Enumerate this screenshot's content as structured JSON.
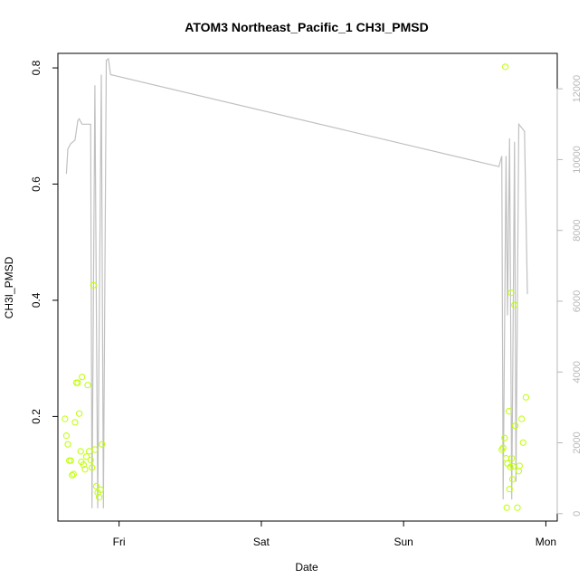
{
  "chart_data": {
    "type": "scatter",
    "title": "ATOM3 Northeast_Pacific_1 CH3I_PMSD",
    "xlabel": "Date",
    "ylabel": "CH3I_PMSD",
    "x_axis": {
      "unit": "days",
      "range": [
        -0.43,
        3.08
      ],
      "ticks": [
        {
          "value": 0,
          "label": "Fri"
        },
        {
          "value": 1,
          "label": "Sat"
        },
        {
          "value": 2,
          "label": "Sun"
        },
        {
          "value": 3,
          "label": "Mon"
        }
      ]
    },
    "y_axis": {
      "range": [
        0.02,
        0.825
      ],
      "ticks": [
        0.2,
        0.4,
        0.6,
        0.8
      ]
    },
    "y2_axis": {
      "range": [
        -210,
        13000
      ],
      "ticks": [
        0,
        2000,
        4000,
        6000,
        8000,
        10000,
        12000
      ]
    },
    "point_color": "#bfff00",
    "line_color": "#c0c0c0",
    "series": [
      {
        "type": "scatter",
        "axis": "left",
        "points": [
          {
            "x": -0.38,
            "y": 0.196
          },
          {
            "x": -0.37,
            "y": 0.167
          },
          {
            "x": -0.36,
            "y": 0.152
          },
          {
            "x": -0.35,
            "y": 0.124
          },
          {
            "x": -0.34,
            "y": 0.124
          },
          {
            "x": -0.33,
            "y": 0.099
          },
          {
            "x": -0.32,
            "y": 0.101
          },
          {
            "x": -0.31,
            "y": 0.19
          },
          {
            "x": -0.3,
            "y": 0.258
          },
          {
            "x": -0.29,
            "y": 0.258
          },
          {
            "x": -0.28,
            "y": 0.205
          },
          {
            "x": -0.27,
            "y": 0.14
          },
          {
            "x": -0.265,
            "y": 0.122
          },
          {
            "x": -0.26,
            "y": 0.268
          },
          {
            "x": -0.25,
            "y": 0.117
          },
          {
            "x": -0.24,
            "y": 0.109
          },
          {
            "x": -0.23,
            "y": 0.131
          },
          {
            "x": -0.22,
            "y": 0.254
          },
          {
            "x": -0.21,
            "y": 0.14
          },
          {
            "x": -0.2,
            "y": 0.125
          },
          {
            "x": -0.19,
            "y": 0.112
          },
          {
            "x": -0.18,
            "y": 0.426
          },
          {
            "x": -0.17,
            "y": 0.143
          },
          {
            "x": -0.16,
            "y": 0.08
          },
          {
            "x": -0.15,
            "y": 0.069
          },
          {
            "x": -0.14,
            "y": 0.061
          },
          {
            "x": -0.13,
            "y": 0.074
          },
          {
            "x": -0.12,
            "y": 0.152
          },
          {
            "x": 2.69,
            "y": 0.143
          },
          {
            "x": 2.7,
            "y": 0.146
          },
          {
            "x": 2.71,
            "y": 0.163
          },
          {
            "x": 2.715,
            "y": 0.802
          },
          {
            "x": 2.72,
            "y": 0.128
          },
          {
            "x": 2.725,
            "y": 0.043
          },
          {
            "x": 2.73,
            "y": 0.119
          },
          {
            "x": 2.74,
            "y": 0.209
          },
          {
            "x": 2.745,
            "y": 0.075
          },
          {
            "x": 2.75,
            "y": 0.113
          },
          {
            "x": 2.755,
            "y": 0.413
          },
          {
            "x": 2.76,
            "y": 0.128
          },
          {
            "x": 2.765,
            "y": 0.092
          },
          {
            "x": 2.77,
            "y": 0.114
          },
          {
            "x": 2.78,
            "y": 0.392
          },
          {
            "x": 2.785,
            "y": 0.184
          },
          {
            "x": 2.8,
            "y": 0.043
          },
          {
            "x": 2.81,
            "y": 0.106
          },
          {
            "x": 2.815,
            "y": 0.115
          },
          {
            "x": 2.83,
            "y": 0.196
          },
          {
            "x": 2.84,
            "y": 0.155
          },
          {
            "x": 2.86,
            "y": 0.233
          }
        ]
      },
      {
        "type": "line",
        "axis": "right",
        "points": [
          {
            "x": -0.37,
            "y": 9600
          },
          {
            "x": -0.36,
            "y": 10300
          },
          {
            "x": -0.34,
            "y": 10450
          },
          {
            "x": -0.31,
            "y": 10550
          },
          {
            "x": -0.29,
            "y": 11100
          },
          {
            "x": -0.28,
            "y": 11150
          },
          {
            "x": -0.26,
            "y": 11000
          },
          {
            "x": -0.2,
            "y": 11000
          },
          {
            "x": -0.19,
            "y": 150
          },
          {
            "x": -0.17,
            "y": 12100
          },
          {
            "x": -0.15,
            "y": 150
          },
          {
            "x": -0.125,
            "y": 12400
          },
          {
            "x": -0.11,
            "y": 150
          },
          {
            "x": -0.09,
            "y": 12800
          },
          {
            "x": -0.075,
            "y": 12850
          },
          {
            "x": -0.06,
            "y": 12400
          },
          {
            "x": 2.67,
            "y": 9800
          },
          {
            "x": 2.69,
            "y": 10100
          },
          {
            "x": 2.7,
            "y": 400
          },
          {
            "x": 2.72,
            "y": 10100
          },
          {
            "x": 2.73,
            "y": 5600
          },
          {
            "x": 2.745,
            "y": 10600
          },
          {
            "x": 2.76,
            "y": 400
          },
          {
            "x": 2.78,
            "y": 10500
          },
          {
            "x": 2.79,
            "y": 900
          },
          {
            "x": 2.81,
            "y": 11000
          },
          {
            "x": 2.85,
            "y": 10800
          },
          {
            "x": 2.87,
            "y": 6200
          }
        ]
      }
    ],
    "grid": false,
    "legend": "none"
  }
}
